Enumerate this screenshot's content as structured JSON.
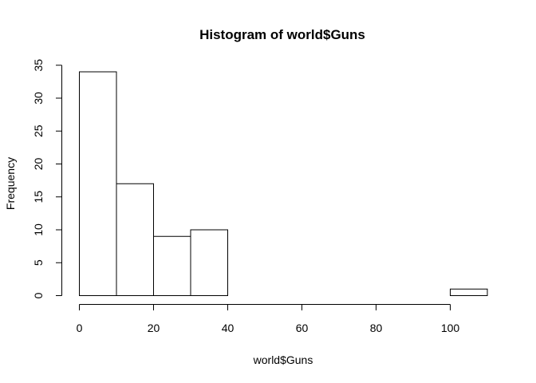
{
  "chart_data": {
    "type": "bar",
    "title": "Histogram of world$Guns",
    "xlabel": "world$Guns",
    "ylabel": "Frequency",
    "bins": [
      {
        "from": 0,
        "to": 10,
        "count": 34
      },
      {
        "from": 10,
        "to": 20,
        "count": 17
      },
      {
        "from": 20,
        "to": 30,
        "count": 9
      },
      {
        "from": 30,
        "to": 40,
        "count": 10
      },
      {
        "from": 40,
        "to": 50,
        "count": 0
      },
      {
        "from": 50,
        "to": 60,
        "count": 0
      },
      {
        "from": 60,
        "to": 70,
        "count": 0
      },
      {
        "from": 70,
        "to": 80,
        "count": 0
      },
      {
        "from": 80,
        "to": 90,
        "count": 0
      },
      {
        "from": 90,
        "to": 100,
        "count": 0
      },
      {
        "from": 100,
        "to": 110,
        "count": 1
      }
    ],
    "xlim": [
      0,
      110
    ],
    "ylim": [
      0,
      35
    ],
    "x_ticks": [
      0,
      20,
      40,
      60,
      80,
      100
    ],
    "y_ticks": [
      0,
      5,
      10,
      15,
      20,
      25,
      30,
      35
    ],
    "grid": false,
    "bar_fill": "#ffffff",
    "bar_stroke": "#000000"
  }
}
